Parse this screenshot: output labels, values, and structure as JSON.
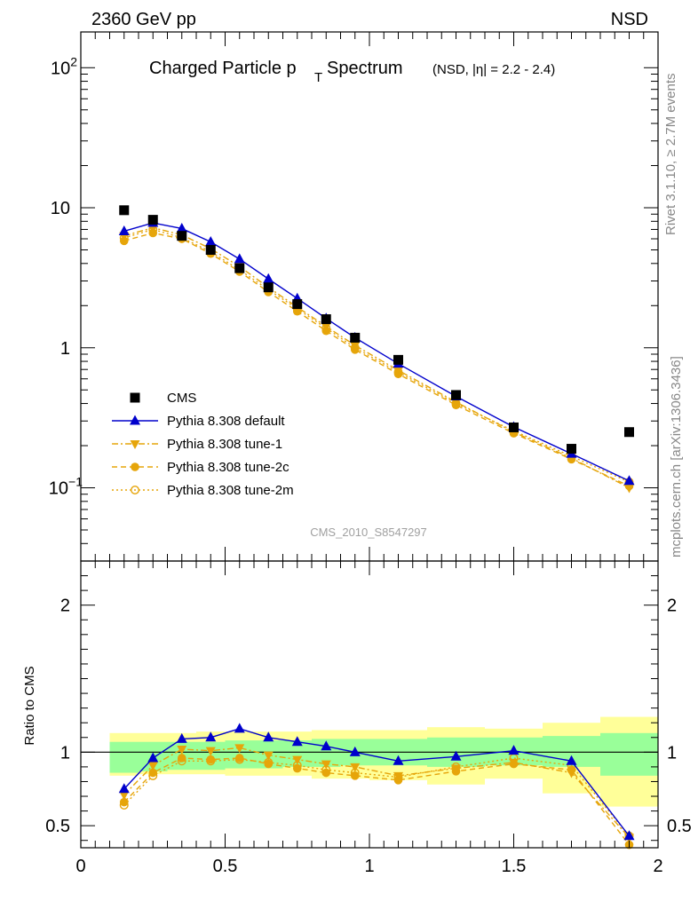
{
  "header": {
    "left": "2360 GeV pp",
    "right": "NSD"
  },
  "side_notes": {
    "rivet": "Rivet 3.1.10, ≥ 2.7M events",
    "mcplots": "mcplots.cern.ch [arXiv:1306.3436]"
  },
  "title": {
    "main_pre": "Charged Particle p",
    "main_sub": "T",
    "main_post": "Spectrum",
    "qualifier": "(NSD, |η| = 2.2 - 2.4)"
  },
  "watermark": "CMS_2010_S8547297",
  "colors": {
    "cms": "#000000",
    "default": "#0000cc",
    "tunes": "#e6a50a",
    "band_inner": "#99ff99",
    "band_outer": "#ffff99"
  },
  "chart_data": [
    {
      "type": "scatter",
      "panel": "main",
      "yscale": "log",
      "xlim": [
        0,
        2
      ],
      "ylim": [
        0.03,
        180
      ],
      "y_ticks": [
        {
          "value": 0.1,
          "base": "10",
          "exp": "−1"
        },
        {
          "value": 1,
          "base": "1",
          "exp": ""
        },
        {
          "value": 10,
          "base": "10",
          "exp": ""
        },
        {
          "value": 100,
          "base": "10",
          "exp": "2"
        }
      ],
      "x": [
        0.15,
        0.25,
        0.35,
        0.45,
        0.55,
        0.65,
        0.75,
        0.85,
        0.95,
        1.1,
        1.3,
        1.5,
        1.7,
        1.9
      ],
      "series": [
        {
          "name": "CMS",
          "marker": "square",
          "values": [
            9.6,
            8.2,
            6.3,
            5.0,
            3.7,
            2.7,
            2.05,
            1.6,
            1.18,
            0.82,
            0.46,
            0.27,
            0.19,
            0.25
          ]
        },
        {
          "name": "Pythia 8.308 default",
          "marker": "triangle-up",
          "line": "solid",
          "values": [
            6.8,
            7.8,
            7.1,
            5.7,
            4.3,
            3.1,
            2.25,
            1.62,
            1.18,
            0.77,
            0.45,
            0.272,
            0.175,
            0.112
          ]
        },
        {
          "name": "Pythia 8.308 tune-1",
          "marker": "triangle-down",
          "line": "dashdot",
          "values": [
            6.3,
            7.2,
            6.4,
            5.1,
            3.8,
            2.7,
            1.95,
            1.42,
            1.04,
            0.69,
            0.41,
            0.25,
            0.163,
            0.1
          ]
        },
        {
          "name": "Pythia 8.308 tune-2c",
          "marker": "circle",
          "line": "dashed",
          "values": [
            5.8,
            6.6,
            6.0,
            4.7,
            3.5,
            2.5,
            1.82,
            1.32,
            0.97,
            0.65,
            0.39,
            0.245,
            0.16,
            0.103
          ]
        },
        {
          "name": "Pythia 8.308 tune-2m",
          "marker": "circle-open",
          "line": "dotted",
          "values": [
            6.1,
            7.0,
            6.1,
            4.85,
            3.6,
            2.6,
            1.9,
            1.38,
            1.0,
            0.67,
            0.4,
            0.255,
            0.168,
            0.11
          ]
        }
      ]
    },
    {
      "type": "scatter",
      "panel": "ratio",
      "ylabel": "Ratio to CMS",
      "xlim": [
        0,
        2
      ],
      "ylim": [
        0.35,
        2.3
      ],
      "x_ticks": [
        0,
        0.5,
        1,
        1.5,
        2
      ],
      "x_tick_labels": [
        "0",
        "0.5",
        "1",
        "1.5",
        "2"
      ],
      "y_ticks": [
        0.5,
        1,
        2
      ],
      "y_tick_labels": [
        "0.5",
        "1",
        "2"
      ],
      "bands": {
        "edges": [
          0.1,
          0.2,
          0.3,
          0.4,
          0.5,
          0.6,
          0.7,
          0.8,
          0.9,
          1.0,
          1.2,
          1.4,
          1.6,
          1.8,
          2.0
        ],
        "inner_low": [
          0.86,
          0.87,
          0.88,
          0.88,
          0.89,
          0.89,
          0.9,
          0.9,
          0.91,
          0.91,
          0.9,
          0.91,
          0.9,
          0.84
        ],
        "inner_high": [
          1.07,
          1.07,
          1.07,
          1.07,
          1.08,
          1.08,
          1.08,
          1.09,
          1.09,
          1.09,
          1.1,
          1.1,
          1.11,
          1.13
        ],
        "outer_low": [
          0.84,
          0.85,
          0.85,
          0.85,
          0.84,
          0.84,
          0.84,
          0.82,
          0.82,
          0.81,
          0.78,
          0.82,
          0.72,
          0.63
        ],
        "outer_high": [
          1.13,
          1.13,
          1.13,
          1.14,
          1.14,
          1.14,
          1.14,
          1.15,
          1.15,
          1.15,
          1.17,
          1.16,
          1.2,
          1.24
        ]
      },
      "reference_line": 1,
      "x": [
        0.15,
        0.25,
        0.35,
        0.45,
        0.55,
        0.65,
        0.75,
        0.85,
        0.95,
        1.1,
        1.3,
        1.5,
        1.7,
        1.9
      ],
      "series": [
        {
          "name": "Pythia 8.308 default",
          "marker": "triangle-up",
          "line": "solid",
          "values": [
            0.75,
            0.96,
            1.09,
            1.1,
            1.16,
            1.1,
            1.07,
            1.04,
            1.0,
            0.94,
            0.97,
            1.01,
            0.94,
            0.43
          ]
        },
        {
          "name": "Pythia 8.308 tune-1",
          "marker": "triangle-down",
          "line": "dashdot",
          "values": [
            0.71,
            0.91,
            1.02,
            1.01,
            1.03,
            0.98,
            0.95,
            0.92,
            0.9,
            0.84,
            0.89,
            0.93,
            0.86,
            0.42
          ]
        },
        {
          "name": "Pythia 8.308 tune-2c",
          "marker": "circle",
          "line": "dashed",
          "values": [
            0.66,
            0.86,
            0.96,
            0.95,
            0.96,
            0.92,
            0.89,
            0.86,
            0.84,
            0.81,
            0.87,
            0.92,
            0.88,
            0.37
          ]
        },
        {
          "name": "Pythia 8.308 tune-2m",
          "marker": "circle-open",
          "line": "dotted",
          "values": [
            0.64,
            0.84,
            0.94,
            0.94,
            0.95,
            0.93,
            0.91,
            0.88,
            0.86,
            0.83,
            0.9,
            0.96,
            0.91,
            0.43
          ]
        }
      ]
    }
  ]
}
